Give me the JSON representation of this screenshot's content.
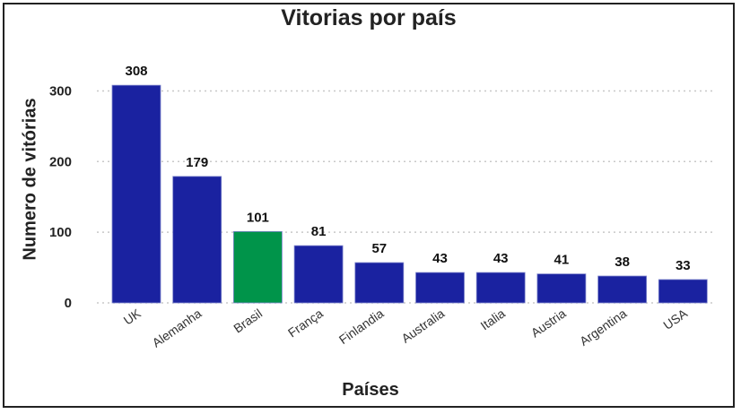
{
  "chart_data": {
    "type": "bar",
    "title": "Vitorias por país",
    "xlabel": "Países",
    "ylabel": "Numero de vitórias",
    "categories": [
      "UK",
      "Alemanha",
      "Brasil",
      "França",
      "Finlandia",
      "Australia",
      "Italia",
      "Austria",
      "Argentina",
      "USA"
    ],
    "values": [
      308,
      179,
      101,
      81,
      57,
      43,
      43,
      41,
      38,
      33
    ],
    "yticks": [
      0,
      100,
      200,
      300
    ],
    "ylim": [
      0,
      340
    ],
    "grid": true,
    "colors": {
      "default": "#1a22a0",
      "highlight": "#00944a",
      "highlight_category": "Brasil",
      "grid": "#c8c8c8"
    }
  }
}
